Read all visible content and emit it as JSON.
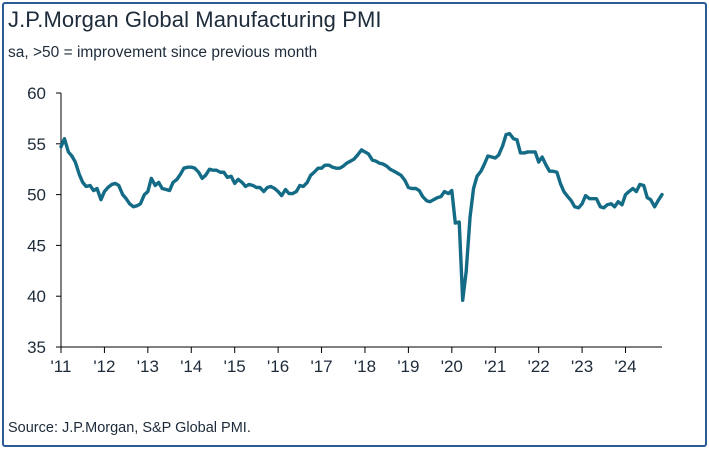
{
  "header": {
    "title": "J.P.Morgan Global Manufacturing PMI",
    "subtitle": "sa, >50 = improvement since previous month"
  },
  "footer": {
    "source": "Source: J.P.Morgan, S&P Global PMI."
  },
  "colors": {
    "line": "#146b86",
    "frame": "#2a5b96",
    "text": "#1d2b3a",
    "grid": "#000000"
  },
  "chart_data": {
    "type": "line",
    "title": "J.P.Morgan Global Manufacturing PMI",
    "subtitle": "sa, >50 = improvement since previous month",
    "xlabel": "",
    "ylabel": "",
    "xlim": [
      2011.0,
      2024.84
    ],
    "ylim": [
      35,
      60
    ],
    "grid": false,
    "y_ticks": [
      35,
      40,
      45,
      50,
      55,
      60
    ],
    "y_tick_labels": [
      "35",
      "40",
      "45",
      "50",
      "55",
      "60"
    ],
    "x_ticks": [
      2011,
      2012,
      2013,
      2014,
      2015,
      2016,
      2017,
      2018,
      2019,
      2020,
      2021,
      2022,
      2023,
      2024
    ],
    "x_tick_labels": [
      "'11",
      "'12",
      "'13",
      "'14",
      "'15",
      "'16",
      "'17",
      "'18",
      "'19",
      "'20",
      "'21",
      "'22",
      "'23",
      "'24"
    ],
    "series": [
      {
        "name": "J.P.Morgan Global Manufacturing PMI",
        "x": [
          2011.0,
          2011.08,
          2011.17,
          2011.25,
          2011.33,
          2011.42,
          2011.5,
          2011.58,
          2011.67,
          2011.75,
          2011.83,
          2011.92,
          2012.0,
          2012.08,
          2012.17,
          2012.25,
          2012.33,
          2012.42,
          2012.5,
          2012.58,
          2012.67,
          2012.75,
          2012.83,
          2012.92,
          2013.0,
          2013.08,
          2013.17,
          2013.25,
          2013.33,
          2013.42,
          2013.5,
          2013.58,
          2013.67,
          2013.75,
          2013.83,
          2013.92,
          2014.0,
          2014.08,
          2014.17,
          2014.25,
          2014.33,
          2014.42,
          2014.5,
          2014.58,
          2014.67,
          2014.75,
          2014.83,
          2014.92,
          2015.0,
          2015.08,
          2015.17,
          2015.25,
          2015.33,
          2015.42,
          2015.5,
          2015.58,
          2015.67,
          2015.75,
          2015.83,
          2015.92,
          2016.0,
          2016.08,
          2016.17,
          2016.25,
          2016.33,
          2016.42,
          2016.5,
          2016.58,
          2016.67,
          2016.75,
          2016.83,
          2016.92,
          2017.0,
          2017.08,
          2017.17,
          2017.25,
          2017.33,
          2017.42,
          2017.5,
          2017.58,
          2017.67,
          2017.75,
          2017.83,
          2017.92,
          2018.0,
          2018.08,
          2018.17,
          2018.25,
          2018.33,
          2018.42,
          2018.5,
          2018.58,
          2018.67,
          2018.75,
          2018.83,
          2018.92,
          2019.0,
          2019.08,
          2019.17,
          2019.25,
          2019.33,
          2019.42,
          2019.5,
          2019.58,
          2019.67,
          2019.75,
          2019.83,
          2019.92,
          2020.0,
          2020.08,
          2020.17,
          2020.25,
          2020.33,
          2020.42,
          2020.5,
          2020.58,
          2020.67,
          2020.75,
          2020.83,
          2020.92,
          2021.0,
          2021.08,
          2021.17,
          2021.25,
          2021.33,
          2021.42,
          2021.5,
          2021.58,
          2021.67,
          2021.75,
          2021.83,
          2021.92,
          2022.0,
          2022.08,
          2022.17,
          2022.25,
          2022.33,
          2022.42,
          2022.5,
          2022.58,
          2022.67,
          2022.75,
          2022.83,
          2022.92,
          2023.0,
          2023.08,
          2023.17,
          2023.25,
          2023.33,
          2023.42,
          2023.5,
          2023.58,
          2023.67,
          2023.75,
          2023.83,
          2023.92,
          2024.0,
          2024.08,
          2024.17,
          2024.25,
          2024.33,
          2024.42,
          2024.5,
          2024.58,
          2024.67,
          2024.75,
          2024.84
        ],
        "values": [
          54.7,
          55.5,
          54.2,
          53.8,
          53.2,
          52.0,
          51.2,
          50.8,
          50.9,
          50.4,
          50.6,
          49.5,
          50.3,
          50.7,
          51.0,
          51.1,
          50.9,
          50.0,
          49.6,
          49.1,
          48.8,
          48.9,
          49.1,
          50.0,
          50.3,
          51.6,
          50.9,
          51.2,
          50.6,
          50.5,
          50.4,
          51.2,
          51.5,
          52.0,
          52.6,
          52.7,
          52.7,
          52.6,
          52.2,
          51.6,
          51.9,
          52.5,
          52.4,
          52.4,
          52.2,
          52.2,
          51.7,
          51.8,
          51.1,
          51.5,
          51.2,
          50.8,
          51.0,
          50.9,
          50.7,
          50.7,
          50.3,
          50.7,
          50.8,
          50.6,
          50.3,
          49.9,
          50.5,
          50.1,
          50.1,
          50.3,
          50.9,
          50.8,
          51.2,
          51.9,
          52.2,
          52.6,
          52.6,
          52.9,
          52.9,
          52.7,
          52.6,
          52.6,
          52.8,
          53.1,
          53.3,
          53.5,
          53.9,
          54.4,
          54.2,
          54.0,
          53.4,
          53.3,
          53.1,
          53.0,
          52.8,
          52.5,
          52.3,
          52.1,
          51.9,
          51.4,
          50.7,
          50.6,
          50.6,
          50.4,
          49.8,
          49.4,
          49.3,
          49.5,
          49.7,
          49.8,
          50.3,
          50.1,
          50.4,
          47.2,
          47.3,
          39.6,
          42.4,
          47.8,
          50.6,
          51.8,
          52.3,
          53.0,
          53.8,
          53.7,
          53.6,
          53.9,
          54.8,
          55.9,
          56.0,
          55.5,
          55.4,
          54.1,
          54.1,
          54.2,
          54.2,
          54.2,
          53.2,
          53.7,
          52.9,
          52.3,
          52.3,
          52.2,
          51.1,
          50.3,
          49.8,
          49.4,
          48.8,
          48.7,
          49.1,
          49.9,
          49.6,
          49.6,
          49.6,
          48.8,
          48.7,
          49.0,
          49.1,
          48.8,
          49.3,
          49.0,
          50.0,
          50.3,
          50.6,
          50.3,
          51.0,
          50.9,
          49.7,
          49.5,
          48.8,
          49.4,
          50.0
        ]
      }
    ]
  }
}
